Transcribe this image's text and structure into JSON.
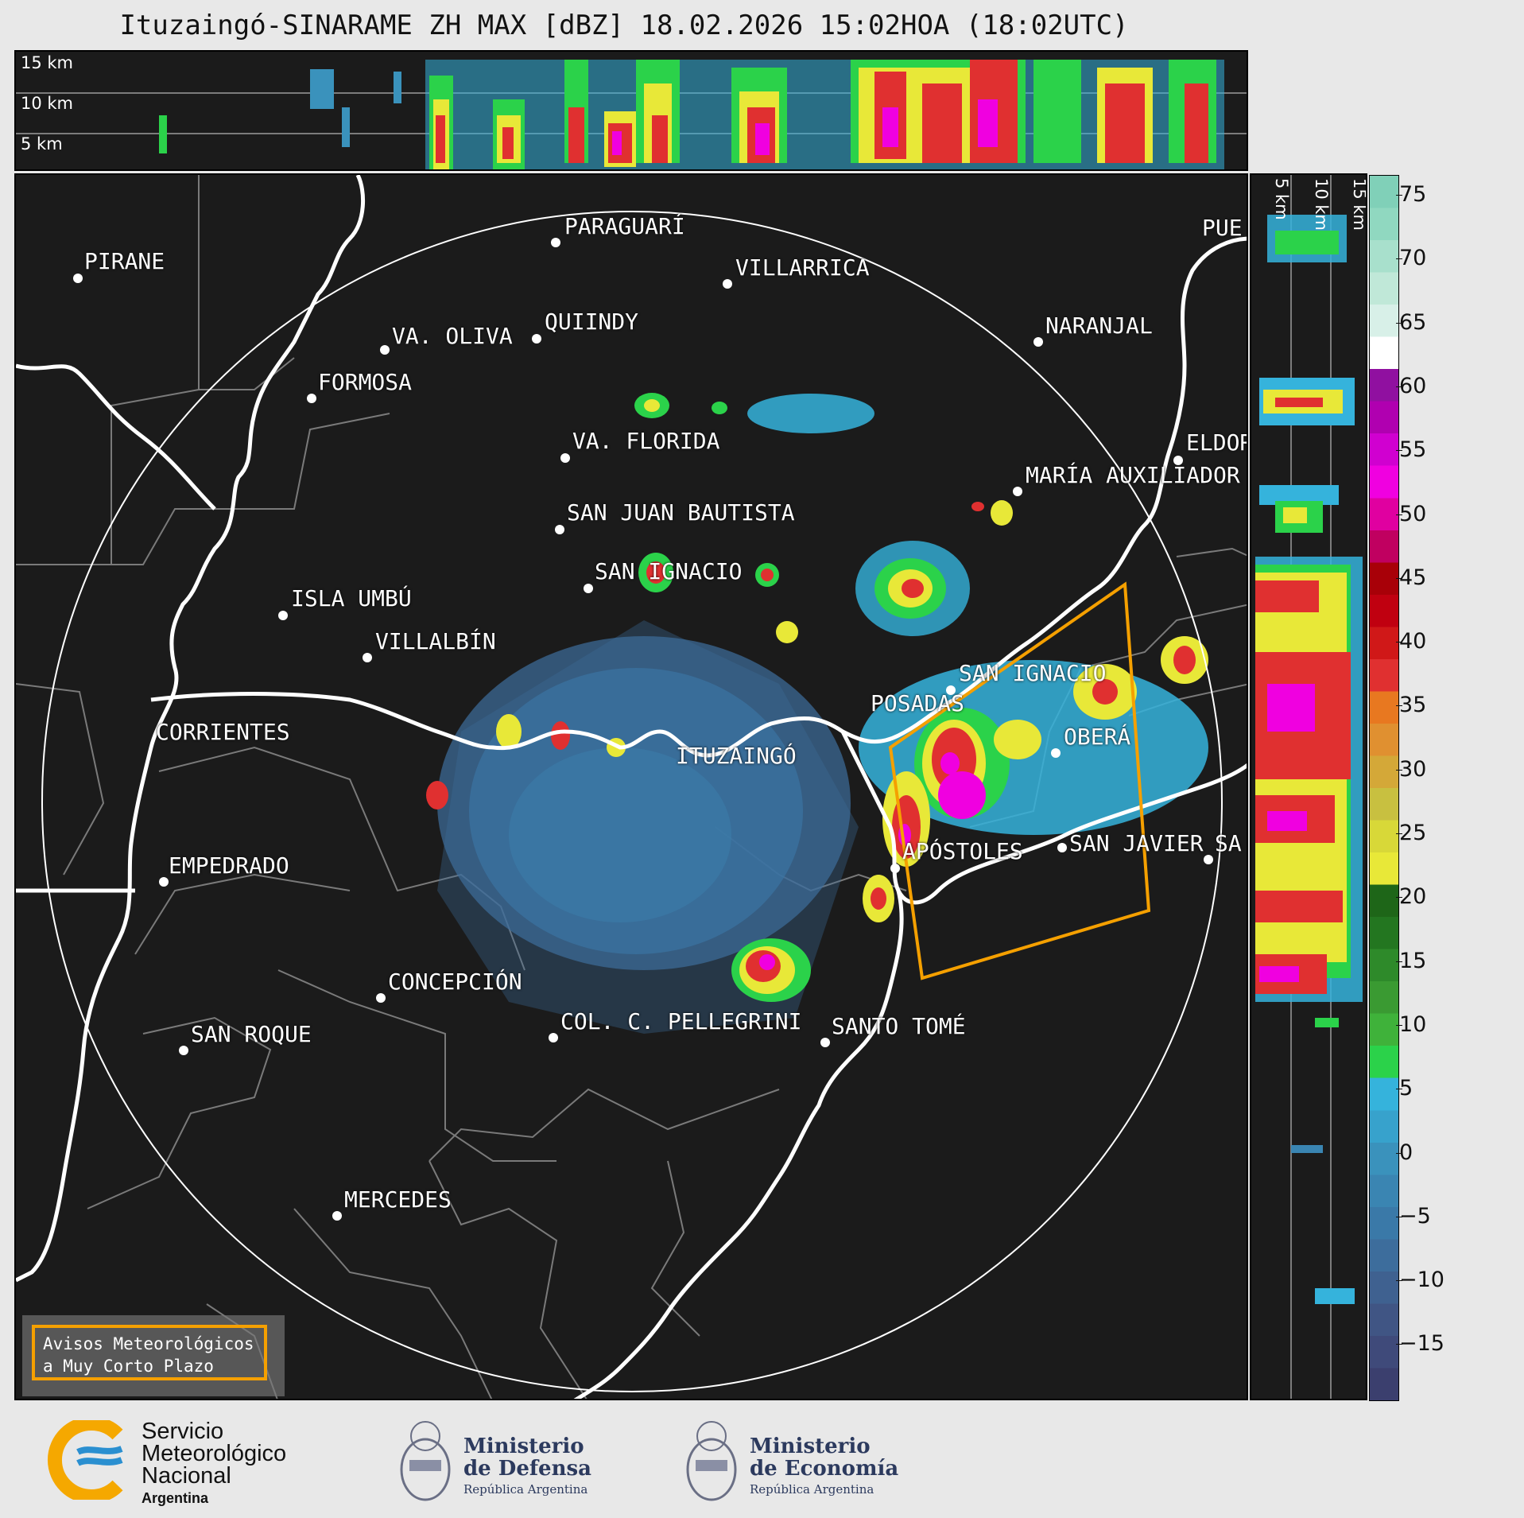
{
  "title": "Ituzaingó-SINARAME ZH MAX [dBZ] 18.02.2026 15:02HOA (18:02UTC)",
  "top_panel": {
    "levels": [
      "15 km",
      "10 km",
      "5 km"
    ]
  },
  "side_panel": {
    "levels": [
      "5 km",
      "10 km",
      "15 km"
    ]
  },
  "colorbar": {
    "ticks": [
      "75",
      "70",
      "65",
      "60",
      "55",
      "50",
      "45",
      "40",
      "35",
      "30",
      "25",
      "20",
      "15",
      "10",
      "5",
      "0",
      "−5",
      "−10",
      "−15"
    ],
    "colors": [
      "#3b3f6e",
      "#3f4a7a",
      "#405584",
      "#3f6190",
      "#3d6d9c",
      "#3a79a8",
      "#3a85b2",
      "#3a92bc",
      "#37a2cc",
      "#35b3dc",
      "#2bd24a",
      "#3fb23a",
      "#3a9a32",
      "#2e8a2a",
      "#237620",
      "#1e6618",
      "#e8e838",
      "#d8d838",
      "#c8c040",
      "#d4a838",
      "#e09030",
      "#e87820",
      "#e03030",
      "#d01818",
      "#c00010",
      "#a80008",
      "#c00060",
      "#e000a0",
      "#f000e0",
      "#d000d0",
      "#b000b0",
      "#9010a0",
      "#ffffff",
      "#d8f0e8",
      "#c0e8d8",
      "#a8e0cc",
      "#90d8c0",
      "#80d0b8"
    ]
  },
  "cities": [
    {
      "name": "PIRANE"
    },
    {
      "name": "PARAGUARÍ"
    },
    {
      "name": "VILLARRICA"
    },
    {
      "name": "QUIINDY"
    },
    {
      "name": "VA. OLIVA"
    },
    {
      "name": "FORMOSA"
    },
    {
      "name": "NARANJAL"
    },
    {
      "name": "VA. FLORIDA"
    },
    {
      "name": "ELDOR"
    },
    {
      "name": "MARÍA AUXILIADOR"
    },
    {
      "name": "SAN JUAN BAUTISTA"
    },
    {
      "name": "SAN IGNACIO"
    },
    {
      "name": "ISLA UMBÚ"
    },
    {
      "name": "VILLALBÍN"
    },
    {
      "name": "SAN IGNACIO"
    },
    {
      "name": "POSADAS"
    },
    {
      "name": "CORRIENTES"
    },
    {
      "name": "ITUZAINGÓ"
    },
    {
      "name": "OBERÁ"
    },
    {
      "name": "APÓSTOLES"
    },
    {
      "name": "SAN JAVIER"
    },
    {
      "name": "SA"
    },
    {
      "name": "EMPEDRADO"
    },
    {
      "name": "CONCEPCIÓN"
    },
    {
      "name": "COL. C. PELLEGRINI"
    },
    {
      "name": "SANTO TOMÉ"
    },
    {
      "name": "SAN ROQUE"
    },
    {
      "name": "MERCEDES"
    },
    {
      "name": "PUE"
    }
  ],
  "legend": {
    "line1": "Avisos Meteorológicos",
    "line2": "a Muy Corto Plazo",
    "color": "#f5a000"
  },
  "logos": {
    "smn": {
      "line1": "Servicio",
      "line2": "Meteorológico",
      "line3": "Nacional",
      "line4": "Argentina"
    },
    "defensa": {
      "line1": "Ministerio",
      "line2": "de Defensa",
      "line3": "República Argentina"
    },
    "economia": {
      "line1": "Ministerio",
      "line2": "de Economía",
      "line3": "República Argentina"
    }
  }
}
